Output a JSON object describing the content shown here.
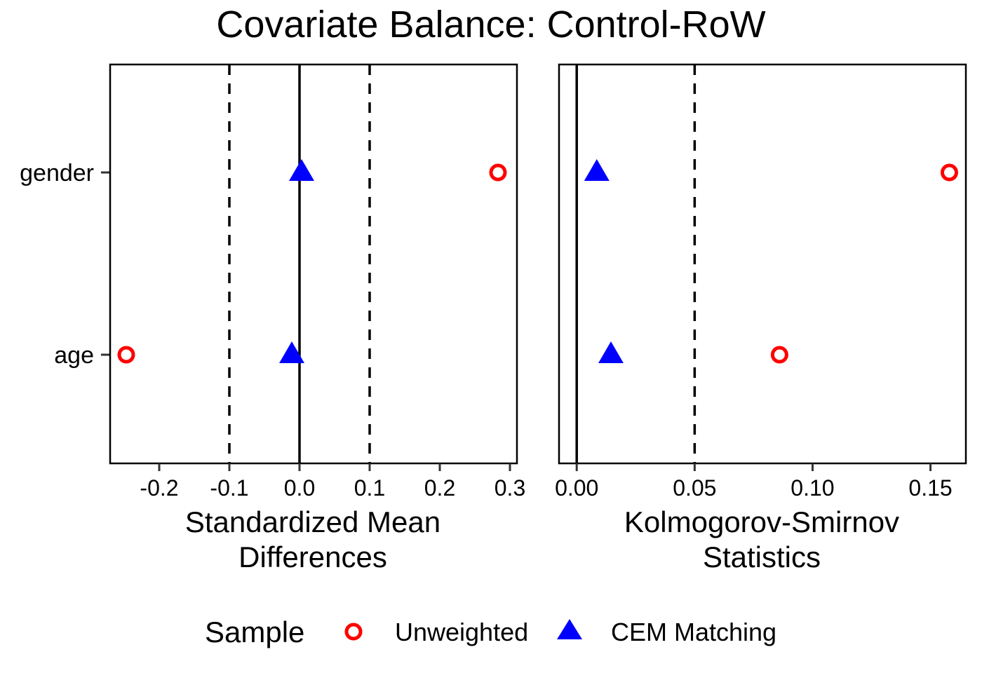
{
  "chart_data": {
    "type": "scatter",
    "title": "Covariate Balance: Control-RoW",
    "covariates": [
      "age",
      "gender"
    ],
    "panels": [
      {
        "id": "smd",
        "xlabel_lines": [
          "Standardized Mean",
          "Differences"
        ],
        "xlim": [
          -0.27,
          0.31
        ],
        "xticks": [
          -0.2,
          -0.1,
          0.0,
          0.1,
          0.2,
          0.3
        ],
        "xtick_labels": [
          "-0.2",
          "-0.1",
          "0.0",
          "0.1",
          "0.2",
          "0.3"
        ],
        "zero_line": 0,
        "thresholds": [
          -0.1,
          0.1
        ],
        "series": [
          {
            "name": "Unweighted",
            "values": {
              "age": -0.247,
              "gender": 0.283
            }
          },
          {
            "name": "CEM Matching",
            "values": {
              "age": -0.011,
              "gender": 0.003
            }
          }
        ]
      },
      {
        "id": "ks",
        "xlabel_lines": [
          "Kolmogorov-Smirnov",
          "Statistics"
        ],
        "xlim": [
          -0.0075,
          0.165
        ],
        "xticks": [
          0.0,
          0.05,
          0.1,
          0.15
        ],
        "xtick_labels": [
          "0.00",
          "0.05",
          "0.10",
          "0.15"
        ],
        "zero_line": 0,
        "thresholds": [
          0.05
        ],
        "series": [
          {
            "name": "Unweighted",
            "values": {
              "age": 0.086,
              "gender": 0.158
            }
          },
          {
            "name": "CEM Matching",
            "values": {
              "age": 0.0145,
              "gender": 0.0085
            }
          }
        ]
      }
    ],
    "legend": {
      "title": "Sample",
      "position": "bottom",
      "entries": [
        {
          "name": "Unweighted",
          "shape": "open-circle",
          "color": "#ff0000"
        },
        {
          "name": "CEM Matching",
          "shape": "filled-triangle",
          "color": "#0000ff"
        }
      ]
    }
  }
}
